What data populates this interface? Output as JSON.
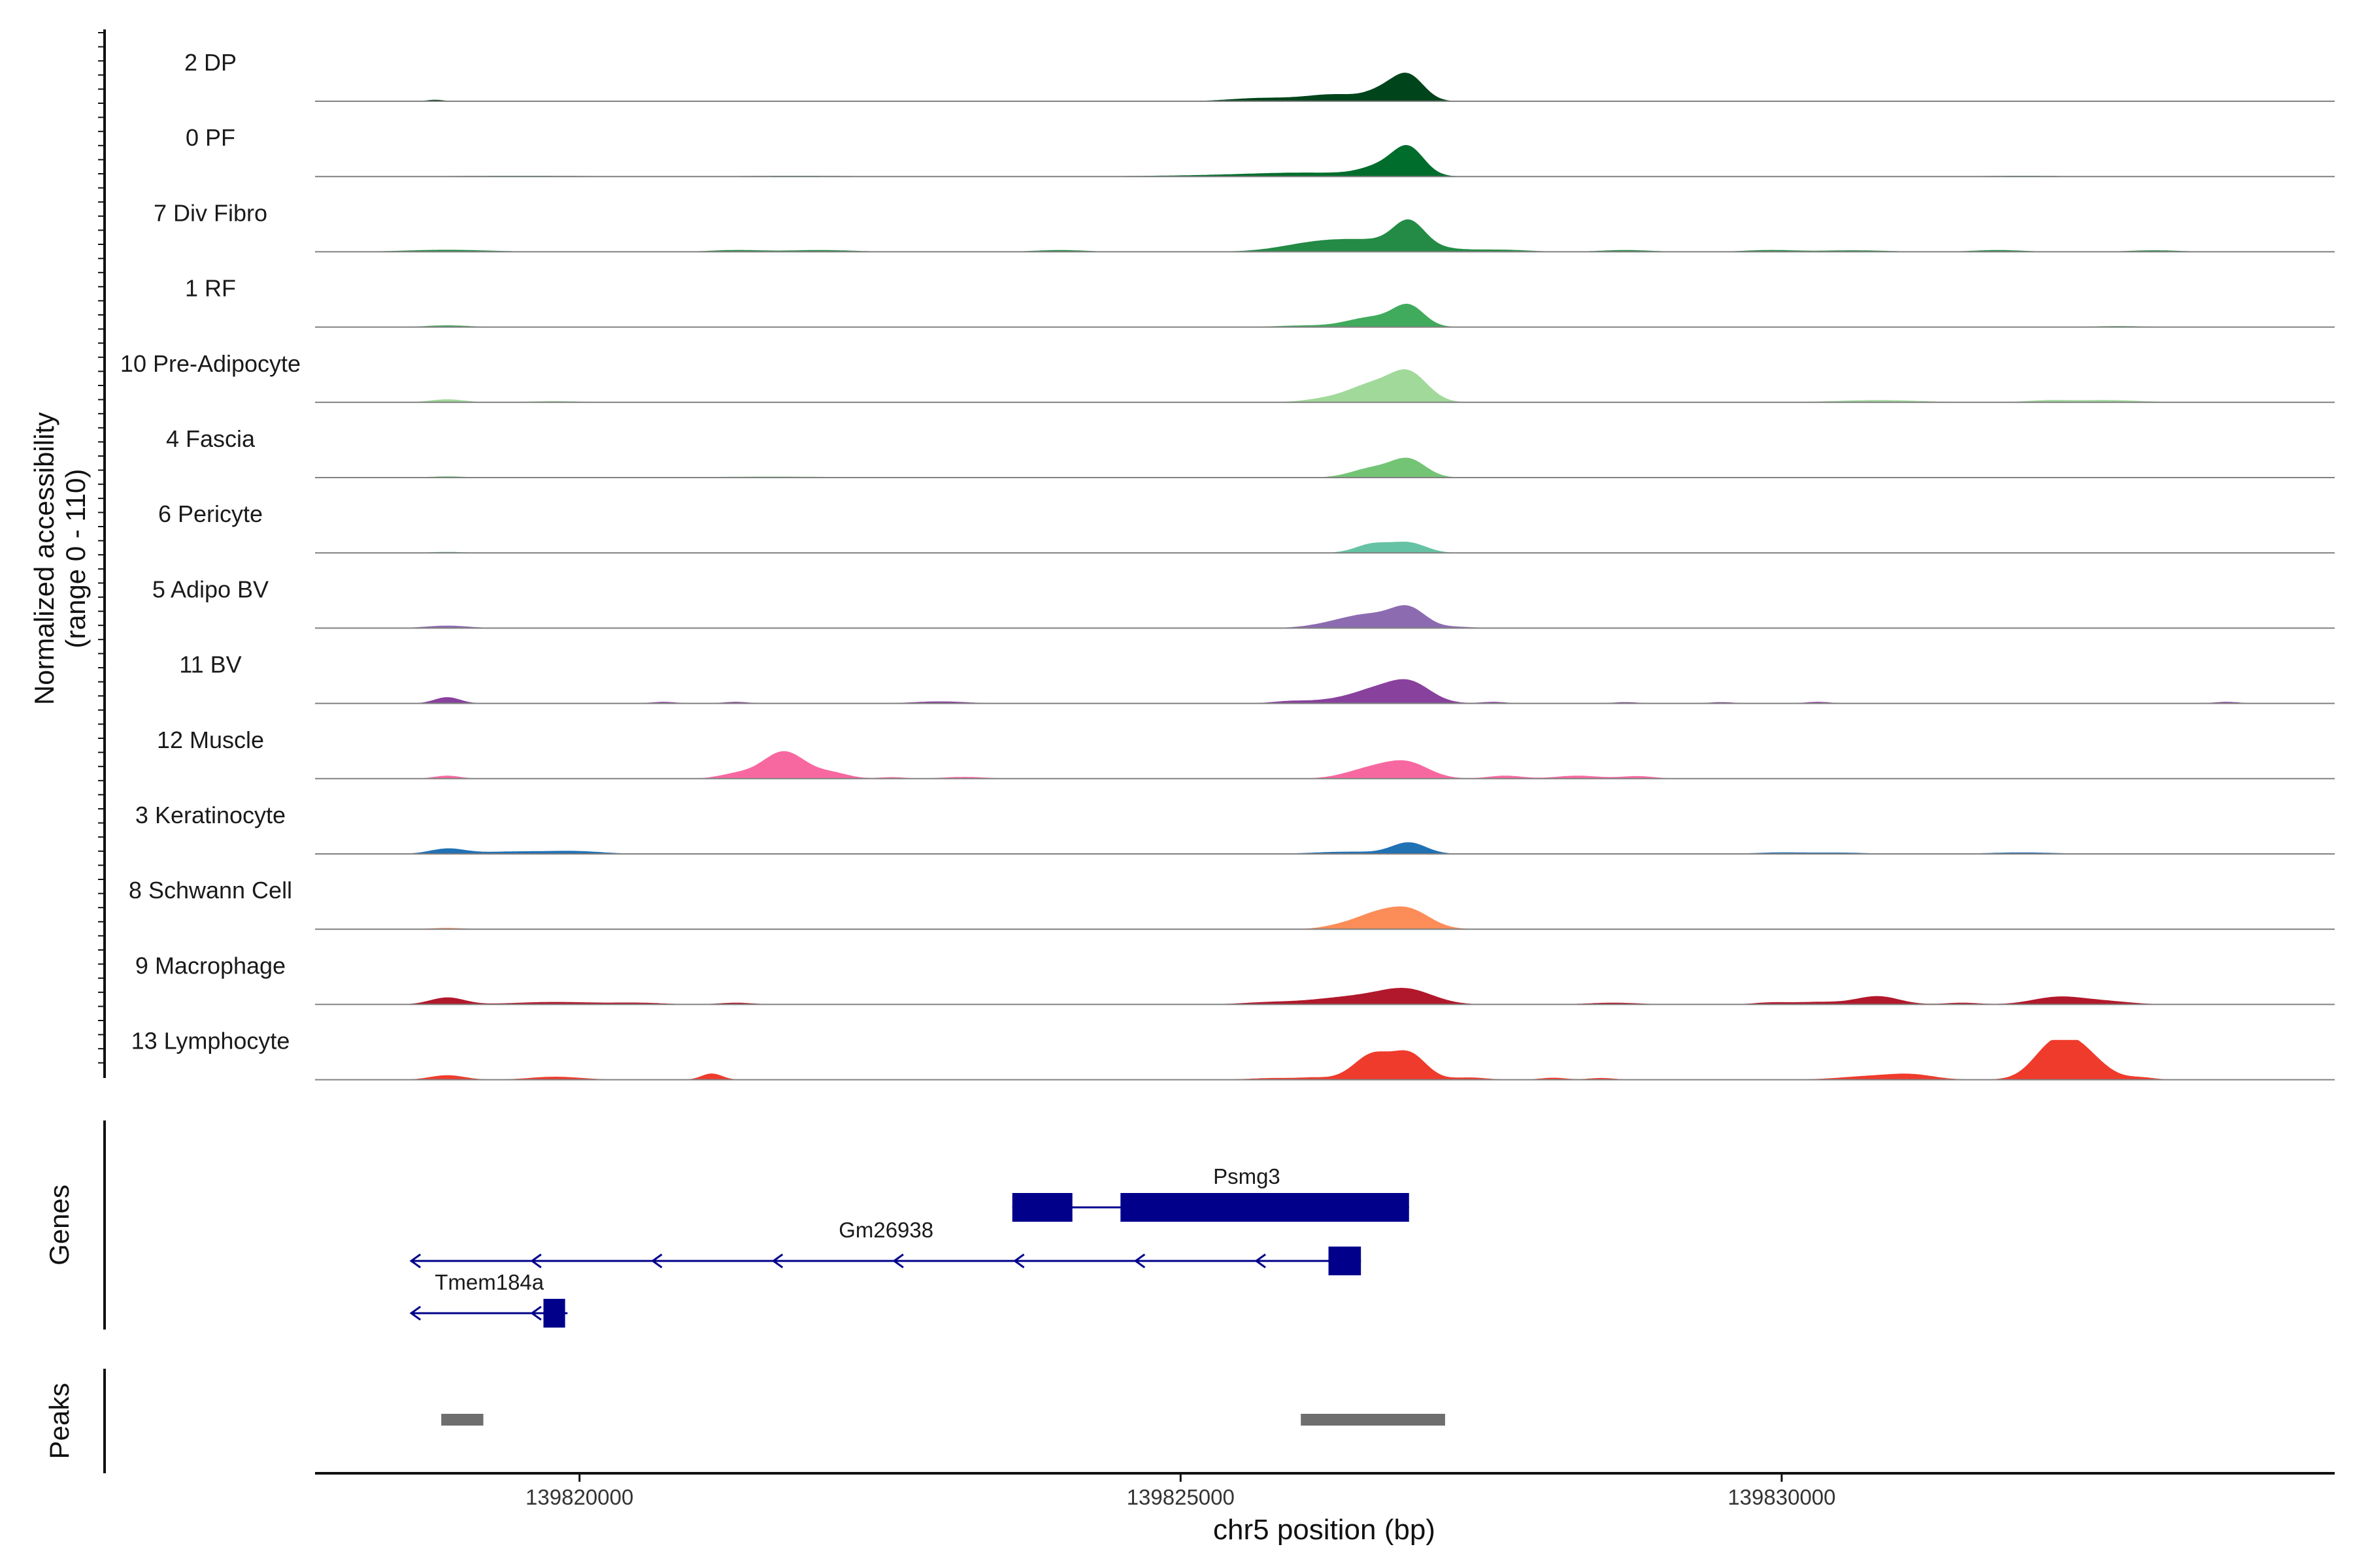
{
  "chart_data": {
    "type": "area",
    "title": "",
    "region": {
      "chrom": "chr5",
      "start": 139817800,
      "end": 139834600
    },
    "xlabel": "chr5 position (bp)",
    "ylabel_line1": "Normalized accessibility",
    "ylabel_line2": "(range 0 - 110)",
    "ylim": [
      0,
      110
    ],
    "xticks": [
      {
        "pos": 139820000,
        "label": "139820000"
      },
      {
        "pos": 139825000,
        "label": "139825000"
      },
      {
        "pos": 139830000,
        "label": "139830000"
      }
    ],
    "baseline_color": "#808080",
    "tracks": [
      {
        "name": "2 DP",
        "color": "#00441b",
        "peaks": [
          [
            139826300,
            300,
            18
          ],
          [
            139826700,
            200,
            42
          ],
          [
            139826900,
            180,
            95
          ],
          [
            139826050,
            600,
            12
          ],
          [
            139818800,
            100,
            6
          ],
          [
            139825600,
            300,
            6
          ]
        ]
      },
      {
        "name": "0 PF",
        "color": "#006d2c",
        "peaks": [
          [
            139826700,
            250,
            40
          ],
          [
            139826900,
            180,
            100
          ],
          [
            139826100,
            700,
            14
          ],
          [
            139825300,
            900,
            4
          ],
          [
            139819500,
            900,
            3
          ],
          [
            139821800,
            700,
            3
          ],
          [
            139832000,
            500,
            3
          ]
        ]
      },
      {
        "name": "7 Div Fibro",
        "color": "#238b45",
        "peaks": [
          [
            139826600,
            600,
            45
          ],
          [
            139826900,
            180,
            95
          ],
          [
            139826100,
            400,
            20
          ],
          [
            139818900,
            500,
            8
          ],
          [
            139821300,
            300,
            7
          ],
          [
            139822000,
            400,
            7
          ],
          [
            139824000,
            300,
            7
          ],
          [
            139827700,
            300,
            7
          ],
          [
            139828700,
            300,
            7
          ],
          [
            139829900,
            300,
            7
          ],
          [
            139830600,
            400,
            6
          ],
          [
            139831800,
            300,
            7
          ],
          [
            139833100,
            300,
            6
          ]
        ]
      },
      {
        "name": "1 RF",
        "color": "#41ab5d",
        "peaks": [
          [
            139826600,
            300,
            40
          ],
          [
            139826900,
            180,
            78
          ],
          [
            139818900,
            250,
            7
          ],
          [
            139826000,
            300,
            6
          ],
          [
            139832800,
            300,
            4
          ]
        ]
      },
      {
        "name": "10 Pre-Adipocyte",
        "color": "#a1d99b",
        "peaks": [
          [
            139826600,
            250,
            62
          ],
          [
            139826900,
            220,
            115
          ],
          [
            139826300,
            300,
            20
          ],
          [
            139818900,
            200,
            12
          ],
          [
            139830800,
            500,
            9
          ],
          [
            139832700,
            400,
            9
          ],
          [
            139832200,
            250,
            7
          ],
          [
            139819800,
            300,
            5
          ]
        ]
      },
      {
        "name": "4 Fascia",
        "color": "#74c476",
        "peaks": [
          [
            139826600,
            250,
            38
          ],
          [
            139826900,
            200,
            70
          ],
          [
            139818900,
            200,
            5
          ],
          [
            139821600,
            700,
            4
          ]
        ]
      },
      {
        "name": "6 Pericyte",
        "color": "#66c2a4",
        "peaks": [
          [
            139826600,
            200,
            36
          ],
          [
            139826900,
            200,
            40
          ],
          [
            139818900,
            200,
            4
          ]
        ]
      },
      {
        "name": "5 Adipo BV",
        "color": "#8c6bb1",
        "peaks": [
          [
            139826600,
            300,
            48
          ],
          [
            139826900,
            200,
            72
          ],
          [
            139826300,
            300,
            18
          ],
          [
            139818900,
            250,
            10
          ],
          [
            139827300,
            200,
            5
          ]
        ]
      },
      {
        "name": "11 BV",
        "color": "#88419d",
        "peaks": [
          [
            139826600,
            250,
            42
          ],
          [
            139826900,
            250,
            85
          ],
          [
            139826300,
            300,
            15
          ],
          [
            139818900,
            150,
            25
          ],
          [
            139823000,
            300,
            8
          ],
          [
            139820700,
            150,
            6
          ],
          [
            139821300,
            150,
            6
          ],
          [
            139825900,
            200,
            8
          ],
          [
            139827600,
            150,
            6
          ],
          [
            139829500,
            150,
            5
          ],
          [
            139830300,
            150,
            6
          ],
          [
            139833700,
            150,
            6
          ],
          [
            139828700,
            150,
            5
          ]
        ]
      },
      {
        "name": "12 Muscle",
        "color": "#f768a1",
        "peaks": [
          [
            139821700,
            250,
            110
          ],
          [
            139822100,
            200,
            22
          ],
          [
            139821300,
            200,
            18
          ],
          [
            139826600,
            300,
            42
          ],
          [
            139826900,
            250,
            55
          ],
          [
            139818900,
            150,
            12
          ],
          [
            139827700,
            200,
            12
          ],
          [
            139828300,
            250,
            12
          ],
          [
            139828800,
            200,
            10
          ],
          [
            139823200,
            250,
            7
          ],
          [
            139822600,
            150,
            6
          ]
        ]
      },
      {
        "name": "3 Keratinocyte",
        "color": "#2171b5",
        "peaks": [
          [
            139826900,
            200,
            45
          ],
          [
            139818900,
            200,
            20
          ],
          [
            139819500,
            500,
            10
          ],
          [
            139820000,
            300,
            8
          ],
          [
            139826400,
            400,
            9
          ],
          [
            139830000,
            300,
            6
          ],
          [
            139830500,
            300,
            5
          ],
          [
            139832000,
            400,
            6
          ]
        ]
      },
      {
        "name": "8 Schwann Cell",
        "color": "#fc8d59",
        "peaks": [
          [
            139826600,
            250,
            52
          ],
          [
            139826900,
            250,
            75
          ],
          [
            139826300,
            200,
            10
          ],
          [
            139818900,
            200,
            5
          ]
        ]
      },
      {
        "name": "9 Macrophage",
        "color": "#b2182b",
        "peaks": [
          [
            139826900,
            300,
            48
          ],
          [
            139826600,
            400,
            28
          ],
          [
            139826200,
            400,
            14
          ],
          [
            139818900,
            200,
            28
          ],
          [
            139819800,
            500,
            10
          ],
          [
            139830800,
            250,
            33
          ],
          [
            139832300,
            300,
            30
          ],
          [
            139832700,
            300,
            12
          ],
          [
            139830300,
            300,
            10
          ],
          [
            139828600,
            300,
            7
          ],
          [
            139829900,
            200,
            7
          ],
          [
            139821300,
            200,
            7
          ],
          [
            139831500,
            200,
            7
          ],
          [
            139825700,
            300,
            7
          ],
          [
            139820500,
            300,
            6
          ]
        ]
      },
      {
        "name": "13 Lymphocyte",
        "color": "#ef3b2c",
        "peaks": [
          [
            139832400,
            300,
            160
          ],
          [
            139832200,
            200,
            40
          ],
          [
            139826600,
            200,
            95
          ],
          [
            139826900,
            200,
            105
          ],
          [
            139826400,
            200,
            12
          ],
          [
            139821100,
            120,
            25
          ],
          [
            139818900,
            200,
            18
          ],
          [
            139819800,
            300,
            12
          ],
          [
            139830800,
            400,
            16
          ],
          [
            139831100,
            250,
            14
          ],
          [
            139827400,
            200,
            9
          ],
          [
            139828100,
            150,
            8
          ],
          [
            139828500,
            150,
            7
          ],
          [
            139833000,
            150,
            8
          ],
          [
            139825800,
            300,
            7
          ],
          [
            139826100,
            150,
            6
          ]
        ]
      }
    ],
    "genes_label": "Genes",
    "genes": [
      {
        "name": "Psmg3",
        "strand": "+",
        "start": 139823600,
        "end": 139826900,
        "exons": [
          [
            139823600,
            139824100
          ],
          [
            139824500,
            139826900
          ]
        ]
      },
      {
        "name": "Gm26938",
        "strand": "-",
        "start": 139818600,
        "end": 139826500,
        "exons": [
          [
            139826230,
            139826500
          ]
        ]
      },
      {
        "name": "Tmem184a",
        "strand": "-",
        "start": 139818600,
        "end": 139819900,
        "exons": [
          [
            139819700,
            139819880
          ]
        ]
      }
    ],
    "peaks_label": "Peaks",
    "peak_regions": [
      [
        139818850,
        139819200
      ],
      [
        139826000,
        139827200
      ]
    ]
  }
}
